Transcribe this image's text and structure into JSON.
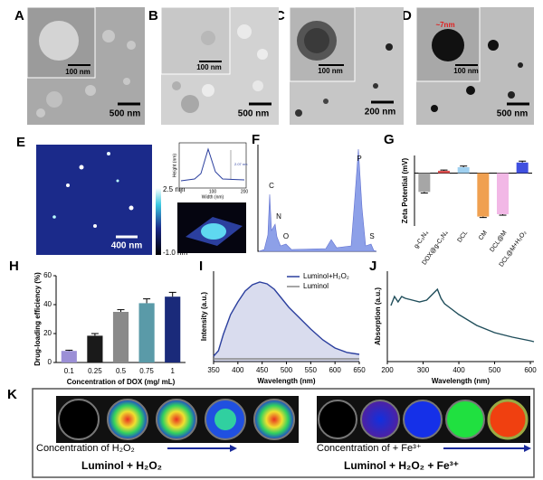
{
  "panel_labels": [
    "A",
    "B",
    "C",
    "D",
    "E",
    "F",
    "G",
    "H",
    "I",
    "J",
    "K"
  ],
  "tem": [
    {
      "inset_scale": "100 nm",
      "main_scale": "500 nm"
    },
    {
      "inset_scale": "100 nm",
      "main_scale": "500 nm"
    },
    {
      "inset_scale": "100 nm",
      "main_scale": "200 nm"
    },
    {
      "inset_scale": "100 nm",
      "main_scale": "500 nm",
      "annotation": "~7nm"
    }
  ],
  "afm": {
    "scale": "400 nm",
    "colorbar_max": "2.5 nm",
    "colorbar_min": "-1.0 nm",
    "profile": {
      "y_label": "Height (nm)",
      "x_label": "Width (nm)",
      "annotation": "2.07 nm",
      "x_ticks": [
        "0",
        "100",
        "200"
      ]
    }
  },
  "eds": {
    "peaks": [
      "C",
      "N",
      "O",
      "P",
      "S"
    ]
  },
  "chart_data": [
    {
      "type": "bar",
      "ylabel": "Zeta Potential (mV)",
      "categories": [
        "g-C₃N₄",
        "DOX@g-C₃N₄",
        "DCL",
        "CM",
        "DCL@M",
        "DCL@M+H₂O₂"
      ],
      "values": [
        -16,
        2,
        5,
        -37,
        -35,
        9
      ],
      "errors": [
        1,
        0.6,
        1,
        0.8,
        0.8,
        1.2
      ],
      "colors": [
        "#a6a6a6",
        "#e05050",
        "#9fd0f0",
        "#f0a050",
        "#f2b8e6",
        "#4050e0"
      ],
      "ylim": [
        -45,
        15
      ]
    },
    {
      "type": "bar",
      "ylabel": "Drug-loading efficiency (%)",
      "xlabel": "Concentration of DOX  (mg/ mL)",
      "categories": [
        "0.1",
        "0.25",
        "0.5",
        "0.75",
        "1"
      ],
      "values": [
        8,
        18.5,
        35,
        41,
        45.5
      ],
      "errors": [
        0.5,
        1.5,
        1.5,
        3,
        3
      ],
      "colors": [
        "#9b8fd6",
        "#1a1a1a",
        "#8a8a8a",
        "#5a9aa8",
        "#1a2a7a"
      ],
      "ylim": [
        0,
        60
      ],
      "yticks": [
        0,
        20,
        40,
        60
      ]
    },
    {
      "type": "line",
      "ylabel": "Intensity (a.u.)",
      "xlabel": "Wavelength (nm)",
      "x": [
        350,
        360,
        370,
        385,
        400,
        415,
        430,
        445,
        460,
        475,
        490,
        505,
        520,
        535,
        550,
        575,
        600,
        625,
        650
      ],
      "series": [
        {
          "name": "Luminol+H₂O₂",
          "color": "#2b3f9e",
          "fill": true,
          "values": [
            0.06,
            0.12,
            0.3,
            0.52,
            0.66,
            0.78,
            0.85,
            0.88,
            0.86,
            0.8,
            0.7,
            0.6,
            0.52,
            0.44,
            0.36,
            0.24,
            0.15,
            0.1,
            0.08
          ]
        },
        {
          "name": "Luminol",
          "color": "#888888",
          "values": [
            0.03,
            0.03,
            0.03,
            0.03,
            0.03,
            0.03,
            0.03,
            0.03,
            0.03,
            0.03,
            0.03,
            0.03,
            0.03,
            0.03,
            0.03,
            0.03,
            0.03,
            0.03,
            0.03
          ]
        }
      ],
      "xlim": [
        350,
        650
      ],
      "xticks": [
        350,
        400,
        450,
        500,
        550,
        600,
        650
      ],
      "ylim": [
        0,
        1
      ],
      "legend": "upper right"
    },
    {
      "type": "line",
      "ylabel": "Absorption (a.u.)",
      "xlabel": "Wavelength (nm)",
      "x": [
        210,
        220,
        230,
        240,
        250,
        270,
        290,
        310,
        320,
        330,
        340,
        350,
        360,
        380,
        400,
        450,
        500,
        550,
        600,
        610
      ],
      "series": [
        {
          "color": "#1f4d5a",
          "values": [
            0.62,
            0.72,
            0.66,
            0.72,
            0.7,
            0.68,
            0.66,
            0.68,
            0.72,
            0.76,
            0.8,
            0.7,
            0.64,
            0.58,
            0.52,
            0.4,
            0.32,
            0.27,
            0.23,
            0.22
          ]
        }
      ],
      "xlim": [
        200,
        610
      ],
      "xticks": [
        200,
        300,
        400,
        500,
        600
      ],
      "ylim": [
        0,
        1
      ]
    }
  ],
  "luminescence": {
    "left_arrow": "Concentration of H₂O₂",
    "left_title": "Luminol + H₂O₂",
    "right_arrow": "Concentration of + Fe³⁺",
    "right_title": "Luminol + H₂O₂ + Fe³⁺"
  }
}
